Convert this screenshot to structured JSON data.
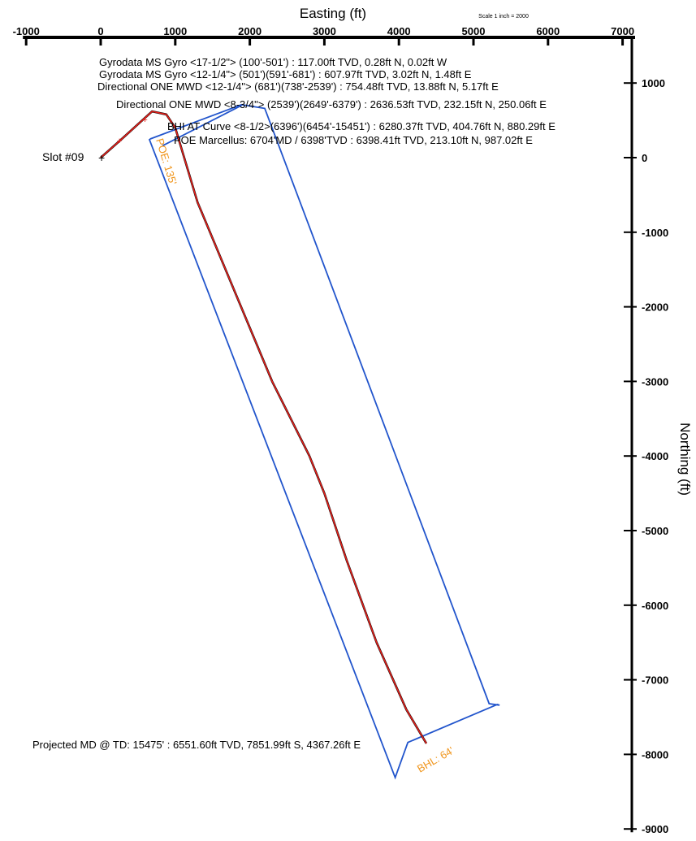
{
  "chart_data": {
    "type": "line",
    "title": "",
    "xlabel": "Easting (ft)",
    "ylabel": "Northing (ft)",
    "scale_note": "Scale 1 inch = 2000",
    "xlim": [
      -1000,
      7000
    ],
    "ylim": [
      -9000,
      1400
    ],
    "x_ticks": [
      -1000,
      0,
      1000,
      2000,
      3000,
      4000,
      5000,
      6000,
      7000
    ],
    "x_tick_labels": [
      "-1000",
      "0",
      "1000",
      "2000",
      "3000",
      "4000",
      "5000",
      "6000",
      "7000"
    ],
    "y_ticks": [
      1000,
      0,
      -1000,
      -2000,
      -3000,
      -4000,
      -5000,
      -6000,
      -7000,
      -8000,
      -9000
    ],
    "y_tick_labels": [
      "1000",
      "0",
      "-1000",
      "-2000",
      "-3000",
      "-4000",
      "-5000",
      "-6000",
      "-7000",
      "-8000",
      "-9000"
    ],
    "slot_label": "Slot #09",
    "series": [
      {
        "name": "",
        "color": "#e8201b",
        "points": [
          [
            0,
            0
          ],
          [
            260,
            230
          ],
          [
            690,
            620
          ],
          [
            880,
            580
          ],
          [
            1000,
            400
          ],
          [
            1300,
            -600
          ],
          [
            1800,
            -1800
          ],
          [
            2300,
            -3000
          ],
          [
            2800,
            -4000
          ],
          [
            3000,
            -4500
          ],
          [
            3300,
            -5400
          ],
          [
            3700,
            -6500
          ],
          [
            4100,
            -7400
          ],
          [
            4367,
            -7852
          ]
        ]
      }
    ],
    "boundary": {
      "color": "#2255cc",
      "points": [
        [
          660,
          250
        ],
        [
          1890,
          710
        ],
        [
          2200,
          660
        ],
        [
          5210,
          -7320
        ],
        [
          5350,
          -7340
        ],
        [
          5320,
          -7330
        ],
        [
          4120,
          -7840
        ],
        [
          3950,
          -8310
        ],
        [
          650,
          250
        ]
      ]
    },
    "boundary_inner": {
      "color": "#2255cc",
      "points": [
        [
          830,
          160
        ],
        [
          1890,
          700
        ]
      ]
    },
    "annotations": [
      "Gyrodata MS Gyro <17-1/2\"> (100'-501') : 117.00ft TVD, 0.28ft N, 0.02ft W",
      "Gyrodata MS Gyro <12-1/4\"> (501')(591'-681') : 607.97ft TVD, 3.02ft N, 1.48ft E",
      "Directional ONE MWD <12-1/4\"> (681')(738'-2539') : 754.48ft TVD, 13.88ft N, 5.17ft E",
      "Directional ONE MWD <8-3/4\"> (2539')(2649'-6379') : 2636.53ft TVD, 232.15ft N, 250.06ft E",
      "BHI AT Curve <8-1/2>(6396')(6454'-15451') : 6280.37ft TVD, 404.76ft N, 880.29ft E",
      "POE Marcellus: 6704'MD / 6398'TVD : 6398.41ft TVD, 213.10ft N, 987.02ft E"
    ],
    "td_annotation": "Projected MD @ TD: 15475' : 6551.60ft TVD, 7851.99ft S, 4367.26ft E",
    "poe_label": "POE: 135'",
    "bhl_label": "BHL: 64'"
  }
}
